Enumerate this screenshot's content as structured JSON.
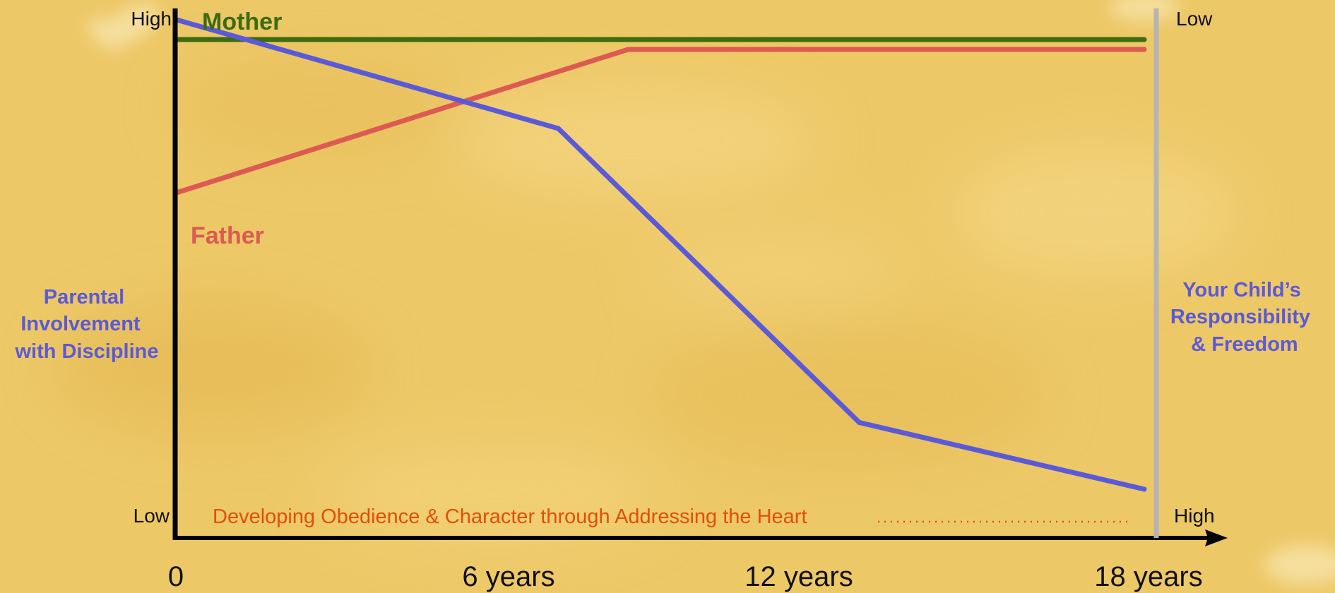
{
  "chart_data": {
    "type": "line",
    "x_ticks": [
      "0",
      "6 years",
      "12 years",
      "18 years"
    ],
    "y_left_title": [
      "Parental",
      "Involvement",
      "with Discipline"
    ],
    "y_left_ticks": {
      "high": "High",
      "low": "Low"
    },
    "y_right_title": [
      "Your Child’s",
      "Responsibility",
      "& Freedom"
    ],
    "y_right_ticks": {
      "low": "Low",
      "high": "High"
    },
    "annotation": "Developing Obedience & Character through Addressing the Heart",
    "xlim": [
      0,
      18
    ],
    "ylim": [
      0,
      100
    ],
    "grid": false,
    "series": [
      {
        "name": "Mother",
        "color": "#3c6b10",
        "points": [
          [
            0,
            96
          ],
          [
            18,
            96
          ]
        ]
      },
      {
        "name": "Father",
        "color": "#dc5a52",
        "points": [
          [
            0,
            65
          ],
          [
            5.5,
            84
          ],
          [
            8.4,
            94
          ],
          [
            18,
            94
          ]
        ]
      },
      {
        "color": "#5a5ad8",
        "points": [
          [
            0,
            100
          ],
          [
            7.1,
            78
          ],
          [
            12.7,
            18.5
          ],
          [
            18,
            5
          ]
        ]
      }
    ],
    "colors": {
      "axis": "#000000",
      "right_axis": "#b4b4b4",
      "axis_title": "#5a5ad8",
      "annotation": "#e0500a"
    }
  }
}
